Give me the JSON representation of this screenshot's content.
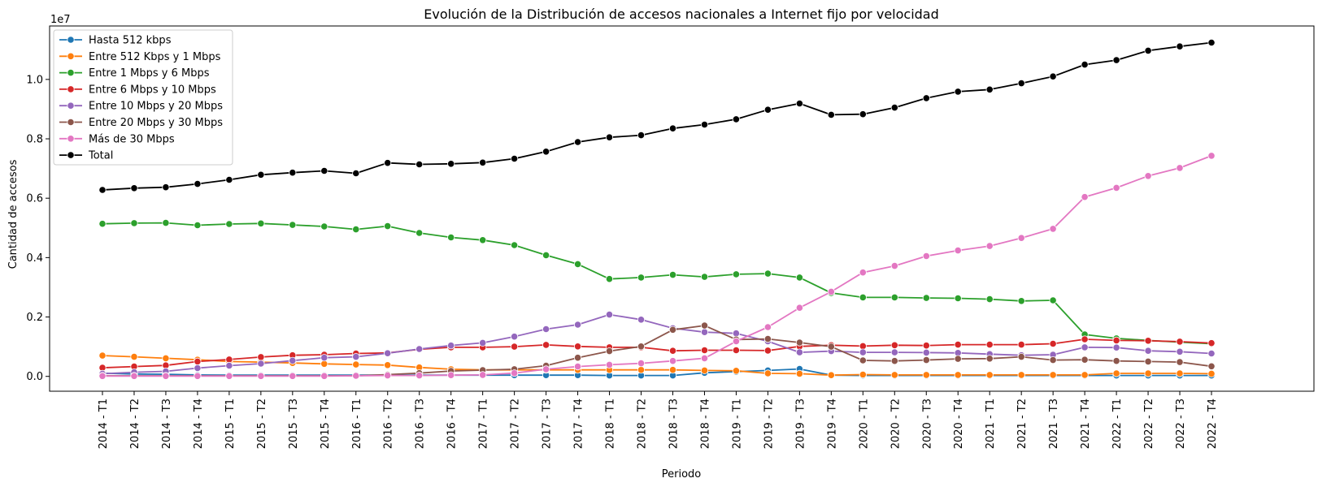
{
  "chart_data": {
    "type": "line",
    "title": "Evolución de la Distribución de accesos nacionales a Internet fijo por velocidad",
    "xlabel": "Periodo",
    "ylabel": "Cantidad de accesos",
    "y_scale_label": "1e7",
    "ylim": [
      -0.05,
      1.18
    ],
    "y_ticks": [
      0.0,
      0.2,
      0.4,
      0.6,
      0.8,
      1.0
    ],
    "y_tick_labels": [
      "0.0",
      "0.2",
      "0.4",
      "0.6",
      "0.8",
      "1.0"
    ],
    "grid": false,
    "legend_placement": "top-left",
    "categories": [
      "2014 - T1",
      "2014 - T2",
      "2014 - T3",
      "2014 - T4",
      "2015 - T1",
      "2015 - T2",
      "2015 - T3",
      "2015 - T4",
      "2016 - T1",
      "2016 - T2",
      "2016 - T3",
      "2016 - T4",
      "2017 - T1",
      "2017 - T2",
      "2017 - T3",
      "2017 - T4",
      "2018 - T1",
      "2018 - T2",
      "2018 - T3",
      "2018 - T4",
      "2019 - T1",
      "2019 - T2",
      "2019 - T3",
      "2019 - T4",
      "2020 - T1",
      "2020 - T2",
      "2020 - T3",
      "2020 - T4",
      "2021 - T1",
      "2021 - T2",
      "2021 - T3",
      "2021 - T4",
      "2022 - T1",
      "2022 - T2",
      "2022 - T3",
      "2022 - T4"
    ],
    "series": [
      {
        "name": "Hasta 512 kbps",
        "color": "#1f77b4",
        "values": [
          0.011,
          0.008,
          0.007,
          0.005,
          0.004,
          0.004,
          0.004,
          0.004,
          0.004,
          0.004,
          0.004,
          0.004,
          0.004,
          0.004,
          0.004,
          0.004,
          0.003,
          0.003,
          0.003,
          0.012,
          0.016,
          0.02,
          0.025,
          0.004,
          0.003,
          0.003,
          0.003,
          0.003,
          0.003,
          0.003,
          0.003,
          0.003,
          0.003,
          0.003,
          0.003,
          0.003
        ]
      },
      {
        "name": "Entre 512 Kbps y 1 Mbps",
        "color": "#ff7f0e",
        "values": [
          0.07,
          0.066,
          0.061,
          0.056,
          0.05,
          0.048,
          0.045,
          0.042,
          0.04,
          0.038,
          0.03,
          0.024,
          0.022,
          0.022,
          0.022,
          0.022,
          0.022,
          0.022,
          0.022,
          0.02,
          0.019,
          0.01,
          0.009,
          0.004,
          0.006,
          0.005,
          0.005,
          0.005,
          0.005,
          0.005,
          0.005,
          0.005,
          0.01,
          0.01,
          0.01,
          0.009
        ]
      },
      {
        "name": "Entre 1 Mbps y 6 Mbps",
        "color": "#2ca02c",
        "values": [
          0.514,
          0.516,
          0.517,
          0.509,
          0.513,
          0.515,
          0.51,
          0.505,
          0.495,
          0.506,
          0.483,
          0.468,
          0.459,
          0.442,
          0.408,
          0.378,
          0.328,
          0.333,
          0.342,
          0.335,
          0.344,
          0.346,
          0.333,
          0.281,
          0.266,
          0.266,
          0.264,
          0.263,
          0.26,
          0.254,
          0.256,
          0.141,
          0.128,
          0.121,
          0.115,
          0.11
        ]
      },
      {
        "name": "Entre 6 Mbps y 10 Mbps",
        "color": "#d62728",
        "values": [
          0.029,
          0.033,
          0.037,
          0.05,
          0.057,
          0.065,
          0.071,
          0.073,
          0.077,
          0.079,
          0.091,
          0.098,
          0.098,
          0.1,
          0.106,
          0.101,
          0.098,
          0.098,
          0.086,
          0.088,
          0.088,
          0.087,
          0.101,
          0.105,
          0.102,
          0.105,
          0.104,
          0.107,
          0.107,
          0.107,
          0.11,
          0.125,
          0.121,
          0.12,
          0.117,
          0.112
        ]
      },
      {
        "name": "Entre 10 Mbps y 20 Mbps",
        "color": "#9467bd",
        "values": [
          0.009,
          0.014,
          0.017,
          0.028,
          0.036,
          0.043,
          0.053,
          0.063,
          0.066,
          0.078,
          0.092,
          0.104,
          0.113,
          0.134,
          0.159,
          0.174,
          0.208,
          0.191,
          0.162,
          0.149,
          0.145,
          0.118,
          0.081,
          0.085,
          0.081,
          0.081,
          0.08,
          0.079,
          0.075,
          0.071,
          0.073,
          0.098,
          0.097,
          0.086,
          0.083,
          0.077
        ]
      },
      {
        "name": "Entre 20 Mbps y 30 Mbps",
        "color": "#8c564b",
        "values": [
          0.002,
          0.002,
          0.002,
          0.002,
          0.002,
          0.002,
          0.002,
          0.002,
          0.002,
          0.006,
          0.011,
          0.018,
          0.021,
          0.024,
          0.036,
          0.063,
          0.085,
          0.101,
          0.157,
          0.171,
          0.124,
          0.126,
          0.114,
          0.1,
          0.054,
          0.052,
          0.055,
          0.059,
          0.06,
          0.066,
          0.055,
          0.056,
          0.052,
          0.05,
          0.048,
          0.034
        ]
      },
      {
        "name": "Más de 30 Mbps",
        "color": "#e377c2",
        "values": [
          0.001,
          0.001,
          0.001,
          0.001,
          0.001,
          0.001,
          0.001,
          0.001,
          0.002,
          0.003,
          0.003,
          0.004,
          0.005,
          0.011,
          0.024,
          0.033,
          0.039,
          0.044,
          0.052,
          0.061,
          0.118,
          0.166,
          0.231,
          0.285,
          0.35,
          0.372,
          0.405,
          0.424,
          0.439,
          0.466,
          0.497,
          0.604,
          0.635,
          0.675,
          0.702,
          0.743
        ]
      },
      {
        "name": "Total",
        "color": "#000000",
        "values": [
          0.628,
          0.634,
          0.637,
          0.648,
          0.662,
          0.679,
          0.686,
          0.692,
          0.684,
          0.719,
          0.714,
          0.716,
          0.72,
          0.733,
          0.757,
          0.789,
          0.805,
          0.812,
          0.835,
          0.848,
          0.866,
          0.898,
          0.919,
          0.881,
          0.883,
          0.905,
          0.937,
          0.959,
          0.966,
          0.987,
          1.01,
          1.05,
          1.065,
          1.097,
          1.111,
          1.124
        ]
      }
    ]
  }
}
